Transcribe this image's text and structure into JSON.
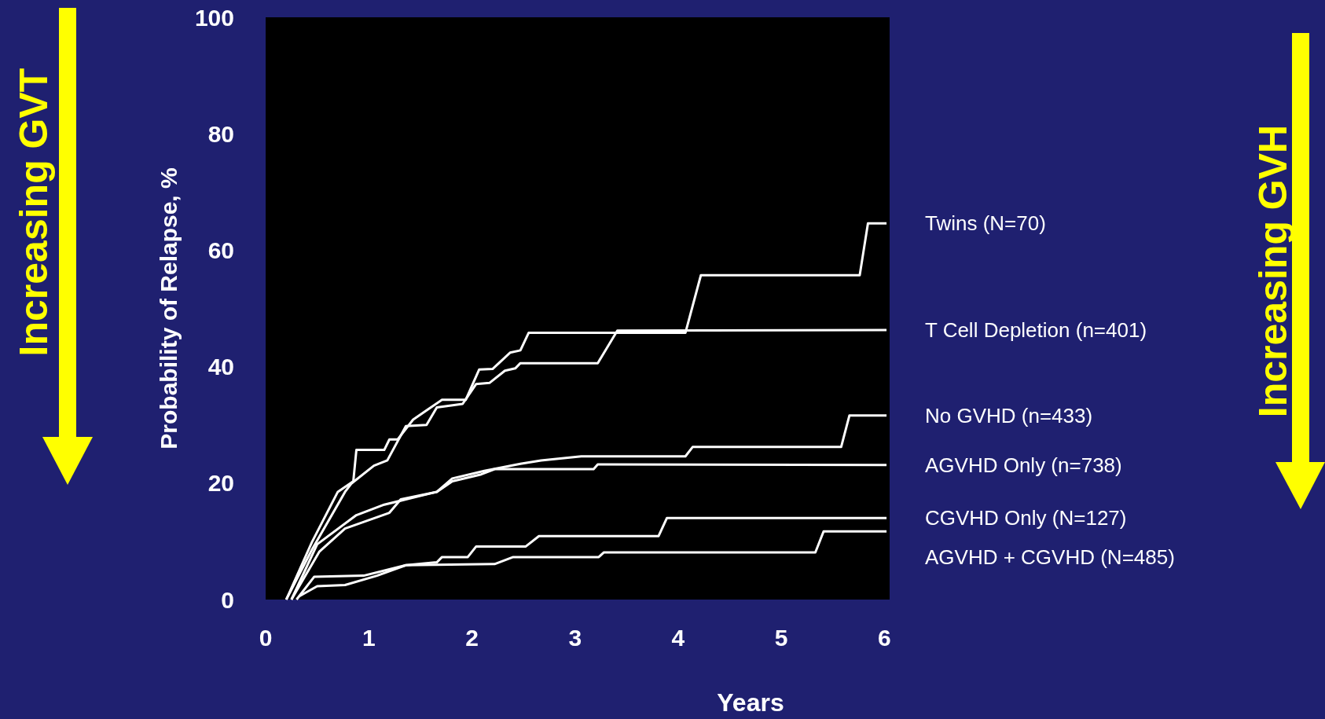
{
  "chart_data": {
    "type": "line",
    "xlabel": "Years",
    "ylabel": "Probability of Relapse, %",
    "xlim": [
      0,
      6.05
    ],
    "xticks": [
      0,
      1,
      2,
      3,
      4,
      5,
      6
    ],
    "ylim": [
      0,
      100
    ],
    "yticks": [
      0,
      20,
      40,
      60,
      80,
      100
    ],
    "grid": false,
    "annotations": [
      "Increasing GVT",
      "Increasing GVH"
    ],
    "series": [
      {
        "name": "Twins (N=70)",
        "color": "#ffffff",
        "x": [
          0.2,
          0.45,
          0.7,
          0.85,
          0.88,
          1.15,
          1.2,
          1.28,
          1.43,
          1.56,
          1.71,
          1.94,
          2.07,
          2.2,
          2.37,
          2.47,
          2.55,
          4.07,
          4.22,
          5.76,
          5.84,
          6.02
        ],
        "values": [
          0,
          9.9,
          18.5,
          20.3,
          25.7,
          25.7,
          27.5,
          27.5,
          30.9,
          32.5,
          34.3,
          34.3,
          39.5,
          39.6,
          42.4,
          42.8,
          45.8,
          45.8,
          55.7,
          55.7,
          64.6,
          64.6
        ]
      },
      {
        "name": "T Cell Depletion (n=401)",
        "color": "#ffffff",
        "x": [
          0.2,
          0.45,
          0.77,
          0.83,
          1.05,
          1.18,
          1.36,
          1.56,
          1.66,
          1.91,
          2.04,
          2.17,
          2.32,
          2.42,
          2.47,
          3.22,
          3.41,
          6.02
        ],
        "values": [
          0,
          8.6,
          18.5,
          19.9,
          23,
          23.9,
          29.8,
          30,
          33,
          33.6,
          37,
          37.2,
          39.3,
          39.7,
          40.6,
          40.6,
          46.2,
          46.3
        ]
      },
      {
        "name": "No GVHD (n=433)",
        "color": "#ffffff",
        "x": [
          0.25,
          0.5,
          0.88,
          1.15,
          1.36,
          1.66,
          1.81,
          2.12,
          2.47,
          2.67,
          3.06,
          4.07,
          4.14,
          5.58,
          5.66,
          6.02
        ],
        "values": [
          0,
          9.5,
          14.5,
          16.3,
          17.2,
          18.5,
          20.8,
          22.1,
          23.3,
          23.9,
          24.6,
          24.6,
          26.2,
          26.2,
          31.6,
          31.6
        ]
      },
      {
        "name": "AGVHD Only (n=738)",
        "color": "#ffffff",
        "x": [
          0.25,
          0.52,
          0.77,
          1.2,
          1.31,
          1.66,
          1.81,
          2.09,
          2.22,
          3.18,
          3.22,
          6.02
        ],
        "values": [
          0,
          8.2,
          12.2,
          14.9,
          17.2,
          18.5,
          20.3,
          21.5,
          22.4,
          22.4,
          23.2,
          23.1
        ]
      },
      {
        "name": "CGVHD Only (N=127)",
        "color": "#ffffff",
        "x": [
          0.3,
          0.47,
          0.95,
          1.36,
          1.66,
          1.71,
          1.96,
          2.04,
          2.52,
          2.65,
          3.81,
          3.89,
          6.02
        ],
        "values": [
          0,
          3.9,
          4.1,
          5.9,
          6.4,
          7.3,
          7.3,
          9.1,
          9.1,
          10.9,
          10.9,
          14,
          14
        ]
      },
      {
        "name": "AGVHD + CGVHD (N=485)",
        "color": "#ffffff",
        "x": [
          0.32,
          0.5,
          0.77,
          1.08,
          1.36,
          2.22,
          2.4,
          3.23,
          3.28,
          5.33,
          5.41,
          6.02
        ],
        "values": [
          0.5,
          2.3,
          2.5,
          4.1,
          5.9,
          6.1,
          7.3,
          7.3,
          8.1,
          8.1,
          11.7,
          11.7
        ]
      }
    ]
  }
}
